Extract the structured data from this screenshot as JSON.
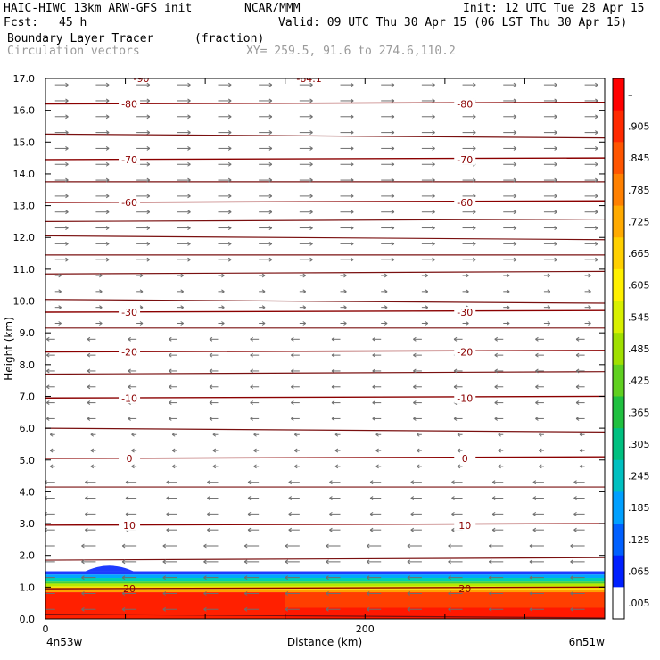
{
  "header": {
    "model": "HAIC-HIWC 13km ARW-GFS init",
    "org": "NCAR/MMM",
    "init": "Init: 12 UTC Tue 28 Apr 15",
    "fcst_label": "Fcst:",
    "fcst_value": "45 h",
    "valid": "Valid: 09 UTC Thu 30 Apr 15 (06 LST Thu 30 Apr 15)",
    "field": "Boundary Layer Tracer",
    "units": "(fraction)",
    "vectors": "Circulation vectors",
    "xy": "XY= 259.5, 91.6 to 274.6,110.2"
  },
  "chart_data": {
    "type": "heatmap",
    "title": "Boundary Layer Tracer",
    "ylabel": "Height (km)",
    "xlabel": "Distance (km)",
    "xlim": [
      0,
      350
    ],
    "ylim": [
      0,
      17
    ],
    "y_ticks": [
      "0.0",
      "1.0",
      "2.0",
      "3.0",
      "4.0",
      "5.0",
      "6.0",
      "7.0",
      "8.0",
      "9.0",
      "10.0",
      "11.0",
      "12.0",
      "13.0",
      "14.0",
      "15.0",
      "16.0",
      "17.0"
    ],
    "x_ticks": [
      {
        "value": 0,
        "label": "0"
      },
      {
        "value": 200,
        "label": "200"
      }
    ],
    "x_endpoints": {
      "left": "4n53w",
      "right": "6n51w"
    },
    "tracer_layer_top_km": 1.5,
    "colorbar": {
      "labels": [
        "–",
        ".905",
        ".845",
        ".785",
        ".725",
        ".665",
        ".605",
        ".545",
        ".485",
        ".425",
        ".365",
        ".305",
        ".245",
        ".185",
        ".125",
        ".065",
        ".005"
      ],
      "colors": [
        "#ff0000",
        "#ff2a00",
        "#ff5500",
        "#ff8000",
        "#ffaa00",
        "#ffd000",
        "#fff000",
        "#d8f000",
        "#a0e000",
        "#60d020",
        "#20c040",
        "#00c080",
        "#00c0c0",
        "#00a0ff",
        "#0060ff",
        "#0020ff",
        "#ffffff"
      ]
    },
    "temperature_contours": [
      {
        "height_km": 0.95,
        "label": "20"
      },
      {
        "height_km": 2.95,
        "label": "10"
      },
      {
        "height_km": 5.05,
        "label": "0"
      },
      {
        "height_km": 6.95,
        "label": "-10"
      },
      {
        "height_km": 8.4,
        "label": "-20"
      },
      {
        "height_km": 9.65,
        "label": "-30"
      },
      {
        "height_km": 13.1,
        "label": "-60"
      },
      {
        "height_km": 14.45,
        "label": "-70"
      },
      {
        "height_km": 16.2,
        "label": "-80"
      }
    ],
    "contour_top_labels": [
      "-90",
      "-84.1"
    ],
    "isentrope_heights_km": [
      0.15,
      1.85,
      4.15,
      6.0,
      7.7,
      9.15,
      10.05,
      10.85,
      11.45,
      12.05,
      12.5,
      13.75,
      15.25
    ]
  }
}
